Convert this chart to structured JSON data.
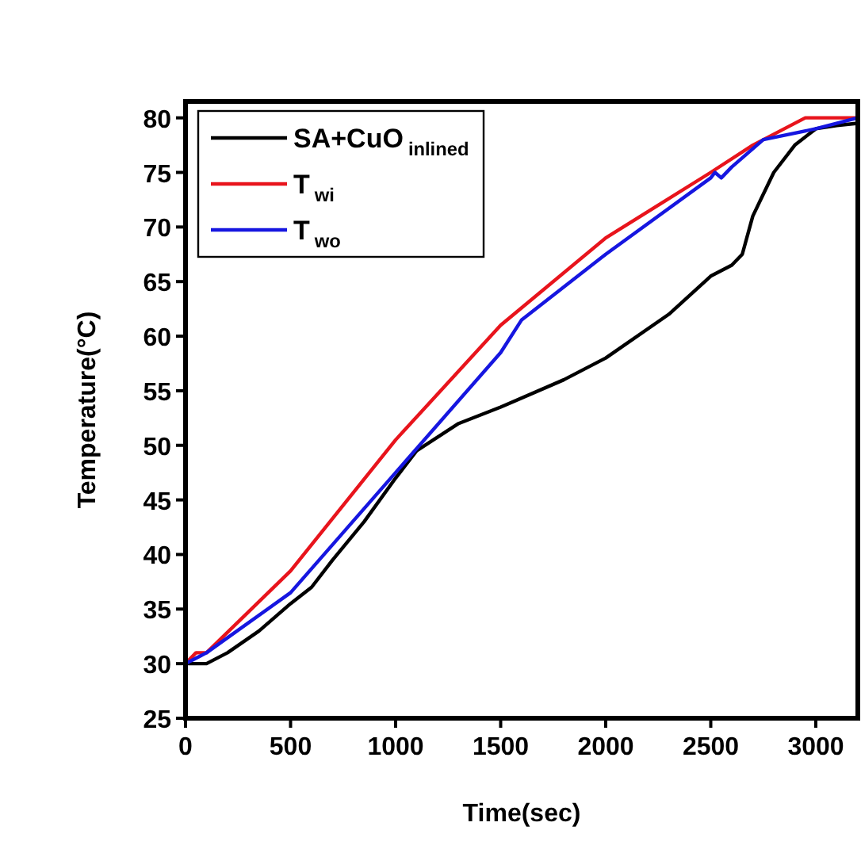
{
  "chart_data": {
    "type": "line",
    "xlabel": "Time(sec)",
    "ylabel": "Temperature(°C)",
    "xlim": [
      0,
      3200
    ],
    "ylim": [
      25,
      81.5
    ],
    "xticks": [
      0,
      500,
      1000,
      1500,
      2000,
      2500,
      3000
    ],
    "yticks": [
      25,
      30,
      35,
      40,
      45,
      50,
      55,
      60,
      65,
      70,
      75,
      80
    ],
    "legend": "top left",
    "grid": false,
    "series": [
      {
        "name": "SA+CuO$_{inlined}$",
        "color": "#000000",
        "x": [
          0,
          100,
          200,
          350,
          500,
          600,
          700,
          850,
          1000,
          1100,
          1300,
          1500,
          1800,
          2000,
          2300,
          2500,
          2600,
          2650,
          2700,
          2750,
          2800,
          2900,
          3000,
          3100,
          3200
        ],
        "values": [
          30,
          30,
          31,
          33,
          35.5,
          37,
          39.5,
          43,
          47,
          49.5,
          52,
          53.5,
          56,
          58,
          62,
          65.5,
          66.5,
          67.5,
          71,
          73,
          75,
          77.5,
          79,
          79.3,
          79.5
        ]
      },
      {
        "name": "T$_{wi}$",
        "color": "#e8141c",
        "x": [
          0,
          50,
          100,
          500,
          1000,
          1500,
          2000,
          2500,
          2700,
          2950,
          3200
        ],
        "values": [
          30,
          31,
          31,
          38.5,
          50.5,
          61,
          69,
          75,
          77.5,
          80,
          80
        ]
      },
      {
        "name": "T$_{wo}$",
        "color": "#1616e0",
        "x": [
          0,
          50,
          100,
          500,
          1000,
          1500,
          1600,
          2000,
          2500,
          2520,
          2550,
          2600,
          2750,
          3000,
          3200
        ],
        "values": [
          30,
          30.5,
          31,
          36.5,
          47.5,
          58.5,
          61.5,
          67.5,
          74.5,
          75,
          74.5,
          75.5,
          78,
          79,
          80
        ]
      }
    ]
  }
}
